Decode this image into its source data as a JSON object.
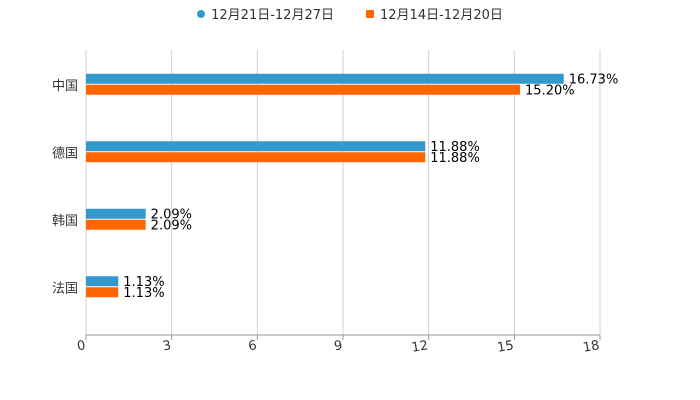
{
  "chart_data": {
    "type": "bar",
    "orientation": "horizontal",
    "categories": [
      "中国",
      "德国",
      "韩国",
      "法国"
    ],
    "series": [
      {
        "name": "12月21日-12月27日",
        "color": "#3399CC",
        "values": [
          16.73,
          11.88,
          2.09,
          1.13
        ],
        "labels": [
          "16.73%",
          "11.88%",
          "2.09%",
          "1.13%"
        ]
      },
      {
        "name": "12月14日-12月20日",
        "color": "#FF6600",
        "values": [
          15.2,
          11.88,
          2.09,
          1.13
        ],
        "labels": [
          "15.20%",
          "11.88%",
          "2.09%",
          "1.13%"
        ]
      }
    ],
    "xlim": [
      0,
      18
    ],
    "xticks": [
      "0",
      "3",
      "6",
      "9",
      "12",
      "15",
      "18"
    ],
    "grid": true,
    "legend_position": "top-center",
    "title": "",
    "xlabel": "",
    "ylabel": ""
  }
}
